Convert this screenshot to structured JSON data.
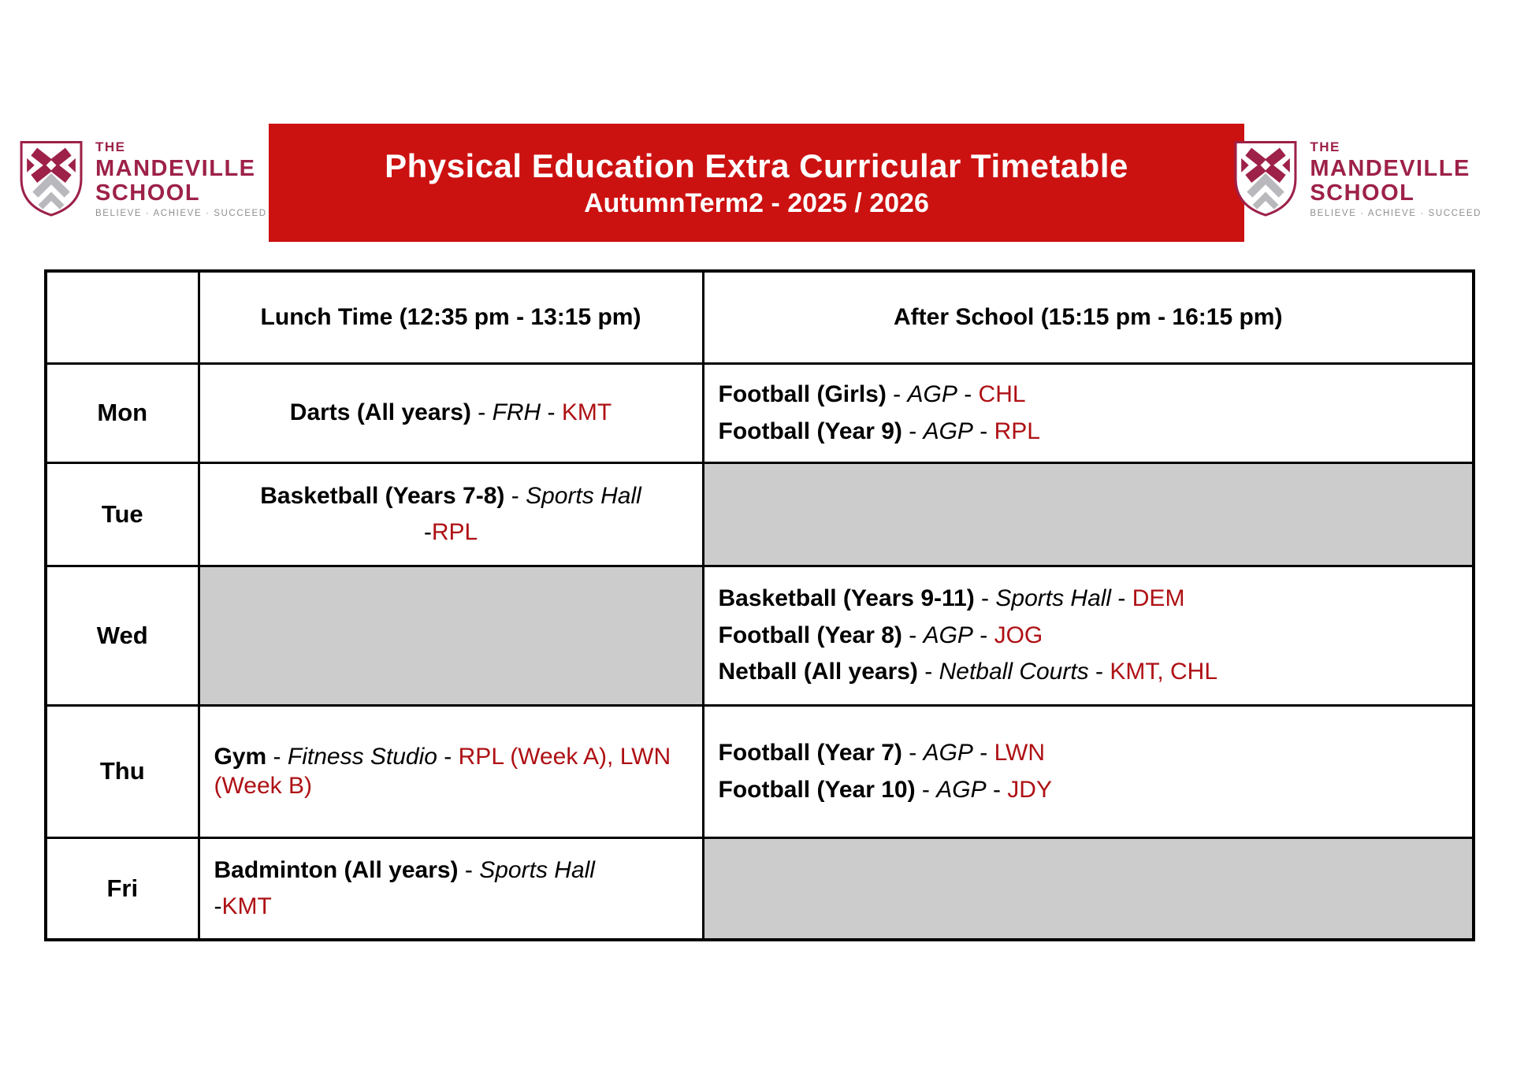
{
  "header": {
    "title": "Physical Education Extra Curricular Timetable",
    "subtitle": "AutumnTerm2 - 2025 / 2026"
  },
  "logo": {
    "the": "THE",
    "name_line1": "MANDEVILLE",
    "name_line2": "SCHOOL",
    "tagline": "BELIEVE · ACHIEVE · SUCCEED"
  },
  "colors": {
    "banner_red": "#cc1111",
    "accent_red": "#ae1014",
    "logo_maroon": "#9d2148",
    "empty_cell_gray": "#cccccc"
  },
  "table": {
    "headers": {
      "day": "",
      "lunch": "Lunch Time (12:35 pm - 13:15 pm)",
      "after_school": "After School (15:15 pm - 16:15 pm)"
    },
    "rows": [
      {
        "day": "Mon",
        "lunch": {
          "empty": false,
          "align": "center",
          "lines": [
            [
              {
                "s": "b",
                "t": "Darts (All years)"
              },
              {
                "s": "n",
                "t": " - "
              },
              {
                "s": "i",
                "t": "FRH"
              },
              {
                "s": "n",
                "t": " - "
              },
              {
                "s": "r",
                "t": "KMT"
              }
            ]
          ]
        },
        "after_school": {
          "empty": false,
          "align": "left",
          "lines": [
            [
              {
                "s": "b",
                "t": "Football (Girls)"
              },
              {
                "s": "n",
                "t": " - "
              },
              {
                "s": "i",
                "t": "AGP"
              },
              {
                "s": "n",
                "t": " - "
              },
              {
                "s": "r",
                "t": "CHL"
              }
            ],
            [
              {
                "s": "b",
                "t": "Football (Year 9)"
              },
              {
                "s": "n",
                "t": " - "
              },
              {
                "s": "i",
                "t": "AGP"
              },
              {
                "s": "n",
                "t": " - "
              },
              {
                "s": "r",
                "t": "RPL"
              }
            ]
          ]
        }
      },
      {
        "day": "Tue",
        "lunch": {
          "empty": false,
          "align": "center",
          "lines": [
            [
              {
                "s": "b",
                "t": "Basketball (Years 7-8)"
              },
              {
                "s": "n",
                "t": " - "
              },
              {
                "s": "i",
                "t": "Sports Hall"
              }
            ],
            [
              {
                "s": "n",
                "t": "-"
              },
              {
                "s": "r",
                "t": "RPL"
              }
            ]
          ]
        },
        "after_school": {
          "empty": true
        }
      },
      {
        "day": "Wed",
        "lunch": {
          "empty": true
        },
        "after_school": {
          "empty": false,
          "align": "left",
          "lines": [
            [
              {
                "s": "b",
                "t": "Basketball (Years 9-11)"
              },
              {
                "s": "n",
                "t": " - "
              },
              {
                "s": "i",
                "t": "Sports Hall"
              },
              {
                "s": "n",
                "t": " - "
              },
              {
                "s": "r",
                "t": "DEM"
              }
            ],
            [
              {
                "s": "b",
                "t": "Football (Year 8)"
              },
              {
                "s": "n",
                "t": " - "
              },
              {
                "s": "i",
                "t": "AGP"
              },
              {
                "s": "n",
                "t": " - "
              },
              {
                "s": "r",
                "t": "JOG"
              }
            ],
            [
              {
                "s": "b",
                "t": "Netball (All years)"
              },
              {
                "s": "n",
                "t": " - "
              },
              {
                "s": "i",
                "t": "Netball Courts"
              },
              {
                "s": "n",
                "t": " - "
              },
              {
                "s": "r",
                "t": "KMT, CHL"
              }
            ]
          ]
        }
      },
      {
        "day": "Thu",
        "lunch": {
          "empty": false,
          "align": "left",
          "lines": [
            [
              {
                "s": "b",
                "t": "Gym"
              },
              {
                "s": "n",
                "t": " - "
              },
              {
                "s": "i",
                "t": "Fitness Studio"
              },
              {
                "s": "n",
                "t": " - "
              },
              {
                "s": "r",
                "t": "RPL (Week A), LWN (Week B)"
              }
            ]
          ]
        },
        "after_school": {
          "empty": false,
          "align": "left",
          "lines": [
            [
              {
                "s": "b",
                "t": "Football (Year 7)"
              },
              {
                "s": "n",
                "t": " - "
              },
              {
                "s": "i",
                "t": "AGP"
              },
              {
                "s": "n",
                "t": " - "
              },
              {
                "s": "r",
                "t": "LWN"
              }
            ],
            [
              {
                "s": "b",
                "t": "Football (Year 10)"
              },
              {
                "s": "n",
                "t": " - "
              },
              {
                "s": "i",
                "t": "AGP"
              },
              {
                "s": "n",
                "t": " - "
              },
              {
                "s": "r",
                "t": "JDY"
              }
            ]
          ]
        }
      },
      {
        "day": "Fri",
        "lunch": {
          "empty": false,
          "align": "left",
          "lines": [
            [
              {
                "s": "b",
                "t": "Badminton (All years)"
              },
              {
                "s": "n",
                "t": " - "
              },
              {
                "s": "i",
                "t": "Sports Hall"
              }
            ],
            [
              {
                "s": "n",
                "t": "-"
              },
              {
                "s": "r",
                "t": "KMT"
              }
            ]
          ]
        },
        "after_school": {
          "empty": true
        }
      }
    ]
  }
}
